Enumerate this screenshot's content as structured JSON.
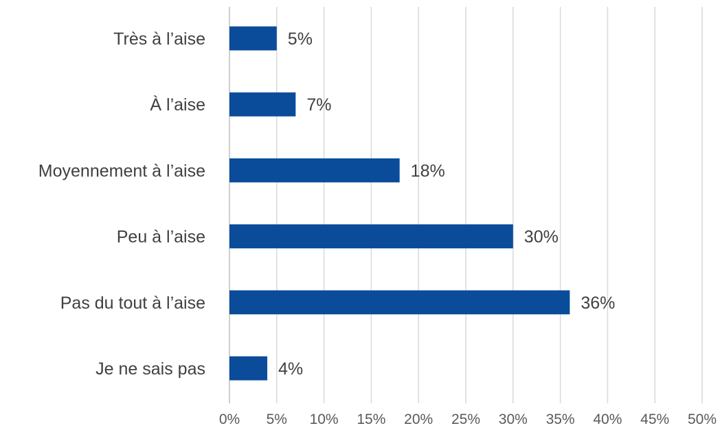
{
  "chart_data": {
    "type": "bar",
    "orientation": "horizontal",
    "title": "",
    "xlabel": "",
    "ylabel": "",
    "categories": [
      "Très à l’aise",
      "À l’aise",
      "Moyennement à l’aise",
      "Peu à l’aise",
      "Pas du tout à l’aise",
      "Je ne sais pas"
    ],
    "values": [
      5,
      7,
      18,
      30,
      36,
      4
    ],
    "data_labels": [
      "5%",
      "7%",
      "18%",
      "30%",
      "36%",
      "4%"
    ],
    "xlim": [
      0,
      50
    ],
    "ticks": [
      0,
      5,
      10,
      15,
      20,
      25,
      30,
      35,
      40,
      45,
      50
    ],
    "tick_labels": [
      "0%",
      "5%",
      "10%",
      "15%",
      "20%",
      "25%",
      "30%",
      "35%",
      "40%",
      "45%",
      "50%"
    ],
    "bar_color": "#0a4c9a",
    "grid": "vertical",
    "legend": "none"
  }
}
